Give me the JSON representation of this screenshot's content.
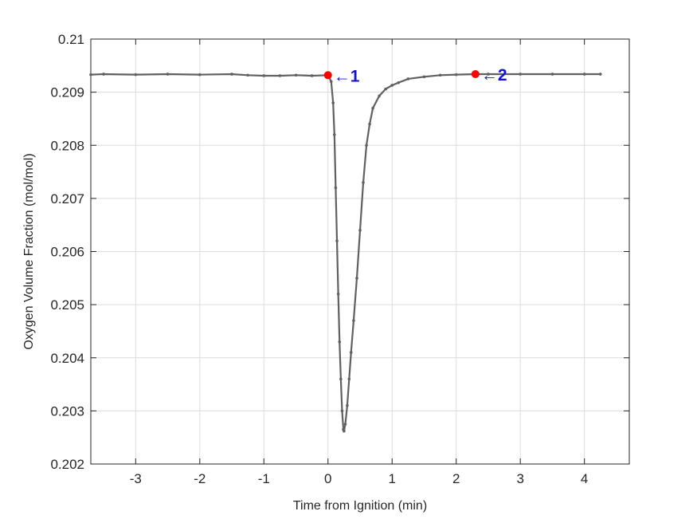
{
  "chart_data": {
    "type": "line",
    "title": "",
    "xlabel": "Time from Ignition (min)",
    "ylabel": "Oxygen Volume Fraction (mol/mol)",
    "xlim": [
      -3.7,
      4.7
    ],
    "ylim": [
      0.202,
      0.21
    ],
    "xticks": [
      -3,
      -2,
      -1,
      0,
      1,
      2,
      3,
      4
    ],
    "xtick_labels": [
      "-3",
      "-2",
      "-1",
      "0",
      "1",
      "2",
      "3",
      "4"
    ],
    "yticks": [
      0.202,
      0.203,
      0.204,
      0.205,
      0.206,
      0.207,
      0.208,
      0.209,
      0.21
    ],
    "ytick_labels": [
      "0.202",
      "0.203",
      "0.204",
      "0.205",
      "0.206",
      "0.207",
      "0.208",
      "0.209",
      "0.21"
    ],
    "grid": true,
    "line_color": "#606060",
    "marker_color": "#ff0000",
    "annotation_color": "#1414d6",
    "series": [
      {
        "name": "",
        "points": [
          [
            -3.7,
            0.20933
          ],
          [
            -3.5,
            0.20934
          ],
          [
            -3.0,
            0.20933
          ],
          [
            -2.5,
            0.20934
          ],
          [
            -2.0,
            0.20933
          ],
          [
            -1.5,
            0.20934
          ],
          [
            -1.25,
            0.20932
          ],
          [
            -1.0,
            0.20931
          ],
          [
            -0.75,
            0.20931
          ],
          [
            -0.5,
            0.20932
          ],
          [
            -0.25,
            0.20931
          ],
          [
            0.0,
            0.20932
          ],
          [
            0.05,
            0.2092
          ],
          [
            0.08,
            0.2088
          ],
          [
            0.1,
            0.2082
          ],
          [
            0.12,
            0.2072
          ],
          [
            0.14,
            0.2062
          ],
          [
            0.16,
            0.2052
          ],
          [
            0.18,
            0.2043
          ],
          [
            0.2,
            0.2036
          ],
          [
            0.22,
            0.203
          ],
          [
            0.24,
            0.20265
          ],
          [
            0.25,
            0.20262
          ],
          [
            0.27,
            0.20275
          ],
          [
            0.3,
            0.2031
          ],
          [
            0.33,
            0.2036
          ],
          [
            0.36,
            0.2041
          ],
          [
            0.4,
            0.2047
          ],
          [
            0.45,
            0.2055
          ],
          [
            0.5,
            0.2064
          ],
          [
            0.55,
            0.2073
          ],
          [
            0.6,
            0.208
          ],
          [
            0.65,
            0.2084
          ],
          [
            0.7,
            0.2087
          ],
          [
            0.8,
            0.20893
          ],
          [
            0.9,
            0.20906
          ],
          [
            1.0,
            0.20913
          ],
          [
            1.1,
            0.20918
          ],
          [
            1.25,
            0.20925
          ],
          [
            1.5,
            0.20929
          ],
          [
            1.75,
            0.20932
          ],
          [
            2.0,
            0.20933
          ],
          [
            2.3,
            0.20934
          ],
          [
            2.5,
            0.20934
          ],
          [
            3.0,
            0.20934
          ],
          [
            3.5,
            0.20934
          ],
          [
            4.0,
            0.20934
          ],
          [
            4.25,
            0.20934
          ]
        ]
      }
    ],
    "highlight_points": [
      {
        "x": 0.0,
        "y": 0.20932,
        "label": "←1"
      },
      {
        "x": 2.3,
        "y": 0.20934,
        "label": "←2"
      }
    ]
  }
}
